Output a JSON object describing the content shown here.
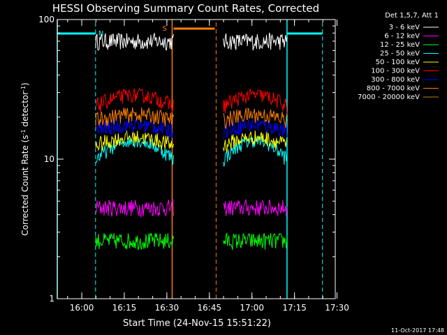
{
  "chart_data": {
    "type": "line",
    "title": "HESSI Observing Summary Count Rates, Corrected",
    "xlabel": "Start Time (24-Nov-15 15:51:22)",
    "ylabel_parts": [
      "Corrected Count Rate (s",
      "-1",
      " detector",
      "-1",
      ")"
    ],
    "y_scale": "log",
    "ylim": [
      1,
      100
    ],
    "y_ticks": [
      {
        "value": 1,
        "label": "1"
      },
      {
        "value": 10,
        "label": "10"
      },
      {
        "value": 100,
        "label": "100"
      }
    ],
    "xlim_minutes": [
      0,
      98
    ],
    "x_ticks": [
      {
        "minute": 8.63,
        "label": "16:00"
      },
      {
        "minute": 23.63,
        "label": "16:15"
      },
      {
        "minute": 38.63,
        "label": "16:30"
      },
      {
        "minute": 53.63,
        "label": "16:45"
      },
      {
        "minute": 68.63,
        "label": "17:00"
      },
      {
        "minute": 83.63,
        "label": "17:15"
      },
      {
        "minute": 98.63,
        "label": "17:30"
      }
    ],
    "legend_title": "Det 1,5,7, Att 1",
    "legend_position": "right",
    "data_intervals_minutes": [
      [
        13.5,
        41.0
      ],
      [
        58.5,
        81.0
      ]
    ],
    "series": [
      {
        "name": "3 - 6 keV",
        "color": "#ffffff",
        "level": 70,
        "ramp": 0
      },
      {
        "name": "6 - 12 keV",
        "color": "#ff00ff",
        "level": 4.5,
        "ramp": 0
      },
      {
        "name": "12 - 25 keV",
        "color": "#00ff00",
        "level": 2.6,
        "ramp": 0
      },
      {
        "name": "25 - 50 keV",
        "color": "#00ffff",
        "level": 10,
        "ramp": 0.35
      },
      {
        "name": "50 - 100 keV",
        "color": "#ffff00",
        "level": 12.5,
        "ramp": 0.15
      },
      {
        "name": "100 - 300 keV",
        "color": "#ff0000",
        "level": 24,
        "ramp": 0.2
      },
      {
        "name": "300 - 800 keV",
        "color": "#0000ff",
        "level": 16,
        "ramp": 0.1
      },
      {
        "name": "800 - 7000 keV",
        "color": "#ff7f00",
        "level": 19,
        "ramp": 0.1
      },
      {
        "name": "7000 - 20000 keV",
        "color": "#b8860b",
        "level": 0,
        "ramp": 0
      }
    ],
    "annotations": {
      "saa_label": "S",
      "saa_interval_minutes": [
        40.5,
        56.0
      ],
      "night_label": "N",
      "night_interval_minutes": [
        [
          0,
          13.5
        ],
        [
          81.0,
          93.5
        ]
      ]
    }
  },
  "footer": {
    "timestamp": "11-Oct-2017 17:48"
  }
}
